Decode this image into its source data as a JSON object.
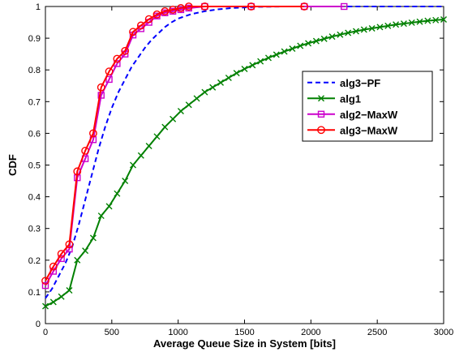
{
  "chart_data": {
    "type": "line",
    "title": "",
    "xlabel": "Average Queue Size in System [bits]",
    "ylabel": "CDF",
    "xlim": [
      0,
      3000
    ],
    "ylim": [
      0,
      1
    ],
    "xticks": [
      0,
      500,
      1000,
      1500,
      2000,
      2500,
      3000
    ],
    "yticks": [
      0,
      0.1,
      0.2,
      0.3,
      0.4,
      0.5,
      0.6,
      0.7,
      0.8,
      0.9,
      1
    ],
    "grid": false,
    "legend": "top-right",
    "series": [
      {
        "name": "alg3−PF",
        "color": "#0000ff",
        "style": "dashed",
        "marker": "none",
        "x": [
          0,
          50,
          100,
          150,
          200,
          250,
          300,
          350,
          400,
          450,
          500,
          550,
          600,
          650,
          700,
          750,
          800,
          850,
          900,
          950,
          1000,
          1100,
          1200,
          1300,
          1400,
          1500,
          1600,
          1800,
          2000,
          2500,
          3000
        ],
        "y": [
          0.08,
          0.11,
          0.15,
          0.19,
          0.24,
          0.31,
          0.39,
          0.47,
          0.55,
          0.62,
          0.68,
          0.73,
          0.77,
          0.81,
          0.84,
          0.87,
          0.895,
          0.915,
          0.935,
          0.95,
          0.962,
          0.976,
          0.985,
          0.991,
          0.995,
          0.997,
          0.999,
          1.0,
          1.0,
          1.0,
          1.0
        ]
      },
      {
        "name": "alg1",
        "color": "#008000",
        "style": "solid",
        "marker": "x",
        "x": [
          0,
          60,
          120,
          180,
          240,
          300,
          360,
          420,
          480,
          540,
          600,
          660,
          720,
          780,
          840,
          900,
          960,
          1020,
          1080,
          1140,
          1200,
          1260,
          1320,
          1380,
          1440,
          1500,
          1560,
          1620,
          1680,
          1740,
          1800,
          1860,
          1920,
          1980,
          2040,
          2100,
          2160,
          2220,
          2280,
          2340,
          2400,
          2460,
          2520,
          2580,
          2640,
          2700,
          2760,
          2820,
          2880,
          2940,
          3000
        ],
        "y": [
          0.055,
          0.068,
          0.085,
          0.105,
          0.2,
          0.23,
          0.27,
          0.34,
          0.37,
          0.41,
          0.45,
          0.5,
          0.53,
          0.56,
          0.59,
          0.62,
          0.645,
          0.67,
          0.69,
          0.71,
          0.73,
          0.745,
          0.76,
          0.775,
          0.79,
          0.803,
          0.815,
          0.827,
          0.838,
          0.848,
          0.858,
          0.867,
          0.876,
          0.884,
          0.891,
          0.898,
          0.905,
          0.911,
          0.917,
          0.922,
          0.927,
          0.931,
          0.935,
          0.939,
          0.943,
          0.946,
          0.949,
          0.952,
          0.955,
          0.957,
          0.959
        ]
      },
      {
        "name": "alg2−MaxW",
        "color": "#cc00cc",
        "style": "solid",
        "marker": "square",
        "x": [
          0,
          60,
          120,
          180,
          240,
          300,
          360,
          420,
          480,
          540,
          600,
          660,
          720,
          780,
          840,
          900,
          960,
          1020,
          1080,
          1200,
          1550,
          1950,
          2250
        ],
        "y": [
          0.12,
          0.165,
          0.205,
          0.235,
          0.46,
          0.52,
          0.58,
          0.72,
          0.77,
          0.82,
          0.85,
          0.91,
          0.93,
          0.95,
          0.97,
          0.98,
          0.985,
          0.99,
          0.995,
          1.0,
          1.0,
          1.0,
          1.0
        ]
      },
      {
        "name": "alg3−MaxW",
        "color": "#ff0000",
        "style": "solid",
        "marker": "circle",
        "x": [
          0,
          60,
          120,
          180,
          240,
          300,
          360,
          420,
          480,
          540,
          600,
          660,
          720,
          780,
          840,
          900,
          960,
          1020,
          1080,
          1200,
          1550,
          1950
        ],
        "y": [
          0.135,
          0.18,
          0.22,
          0.25,
          0.48,
          0.545,
          0.6,
          0.745,
          0.795,
          0.835,
          0.86,
          0.92,
          0.94,
          0.96,
          0.975,
          0.985,
          0.99,
          0.995,
          1.0,
          1.0,
          1.0,
          1.0
        ]
      }
    ]
  }
}
